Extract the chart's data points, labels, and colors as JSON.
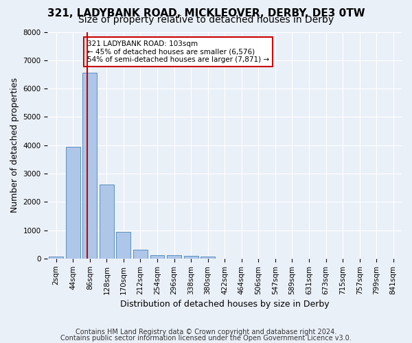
{
  "title1": "321, LADYBANK ROAD, MICKLEOVER, DERBY, DE3 0TW",
  "title2": "Size of property relative to detached houses in Derby",
  "xlabel": "Distribution of detached houses by size in Derby",
  "ylabel": "Number of detached properties",
  "annotation_line1": "321 LADYBANK ROAD: 103sqm",
  "annotation_line2": "← 45% of detached houses are smaller (6,576)",
  "annotation_line3": "54% of semi-detached houses are larger (7,871) →",
  "footer1": "Contains HM Land Registry data © Crown copyright and database right 2024.",
  "footer2": "Contains public sector information licensed under the Open Government Licence v3.0.",
  "bin_labels": [
    "2sqm",
    "44sqm",
    "86sqm",
    "128sqm",
    "170sqm",
    "212sqm",
    "254sqm",
    "296sqm",
    "338sqm",
    "380sqm",
    "422sqm",
    "464sqm",
    "506sqm",
    "547sqm",
    "589sqm",
    "631sqm",
    "673sqm",
    "715sqm",
    "757sqm",
    "799sqm",
    "841sqm"
  ],
  "bar_values": [
    80,
    3950,
    6550,
    2600,
    950,
    300,
    120,
    110,
    100,
    80,
    5,
    5,
    5,
    5,
    5,
    5,
    5,
    5,
    5,
    5,
    5
  ],
  "bar_color": "#aec6e8",
  "bar_edge_color": "#5a8fc0",
  "red_line_color": "#cc0000",
  "red_line_x": 1.85,
  "ylim": [
    0,
    8000
  ],
  "yticks": [
    0,
    1000,
    2000,
    3000,
    4000,
    5000,
    6000,
    7000,
    8000
  ],
  "bg_color": "#eaf0f8",
  "plot_bg_color": "#eaf0f8",
  "grid_color": "#ffffff",
  "annotation_box_color": "#cc0000",
  "title_fontsize": 11,
  "subtitle_fontsize": 10,
  "axis_label_fontsize": 9,
  "tick_fontsize": 7.5,
  "footer_fontsize": 7
}
